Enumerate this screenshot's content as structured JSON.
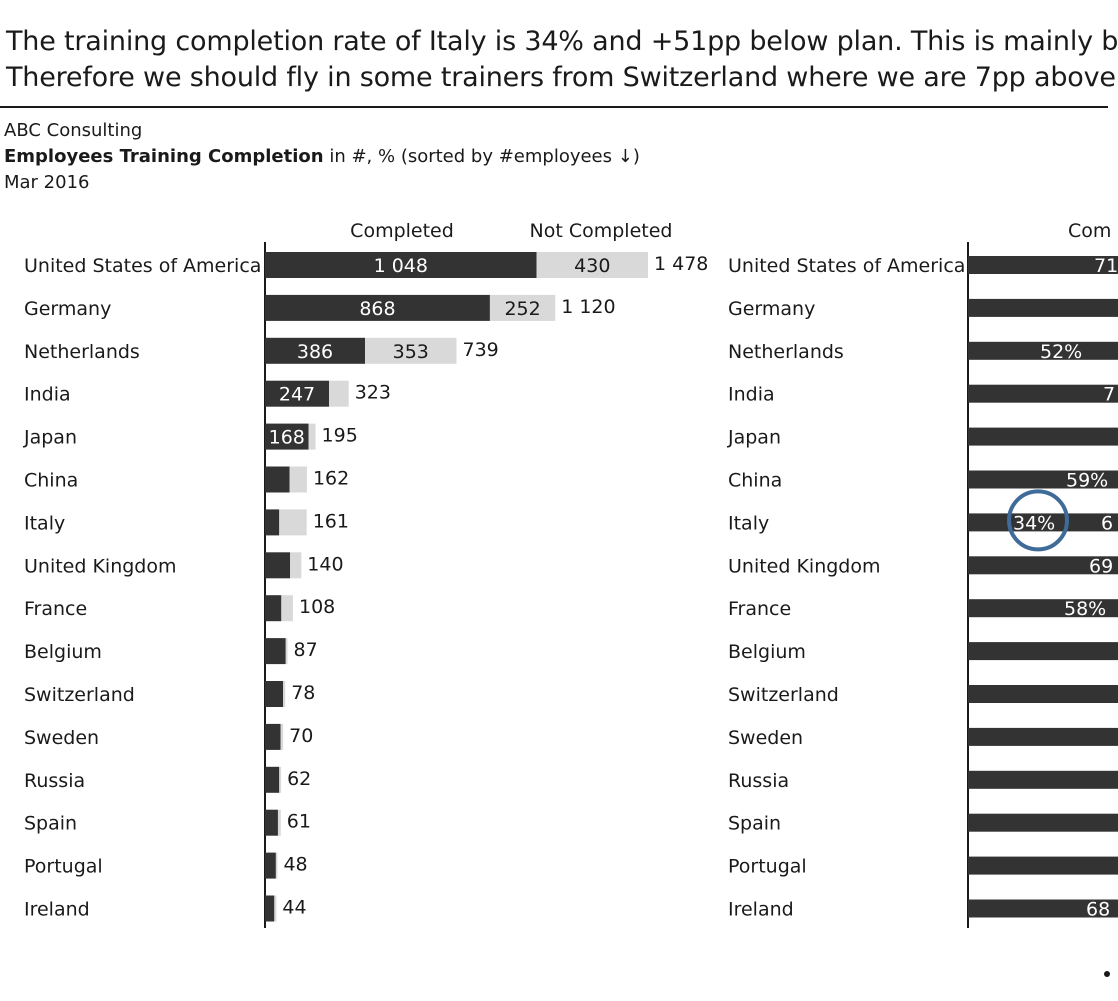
{
  "headline": {
    "line1": "The training completion rate of Italy is 34% and +51pp below plan. This is mainly b",
    "line2": "Therefore we should fly in some trainers from Switzerland where we are 7pp above"
  },
  "meta": {
    "company": "ABC Consulting",
    "title_bold": "Employees Training Completion",
    "title_rest": " in #, % (sorted by #employees ↓)",
    "date": "Mar 2016"
  },
  "colors": {
    "completed": "#333333",
    "not_completed": "#d9d9d9",
    "highlight_ring": "#3f6b99"
  },
  "chart_data": [
    {
      "type": "bar",
      "stacked": true,
      "orientation": "horizontal",
      "legend": [
        "Completed",
        "Not Completed"
      ],
      "categories": [
        "United States of America",
        "Germany",
        "Netherlands",
        "India",
        "Japan",
        "China",
        "Italy",
        "United Kingdom",
        "France",
        "Belgium",
        "Switzerland",
        "Sweden",
        "Russia",
        "Spain",
        "Portugal",
        "Ireland"
      ],
      "series": [
        {
          "name": "Completed",
          "values": [
            1048,
            868,
            386,
            247,
            168,
            95,
            55,
            97,
            63,
            80,
            70,
            60,
            55,
            50,
            42,
            36
          ],
          "labels": [
            "1 048",
            "868",
            "386",
            "247",
            "168",
            "",
            "",
            "",
            "",
            "",
            "",
            "",
            "",
            "",
            "",
            ""
          ]
        },
        {
          "name": "Not Completed",
          "values": [
            430,
            252,
            353,
            76,
            27,
            67,
            106,
            43,
            45,
            7,
            8,
            10,
            7,
            11,
            6,
            8
          ],
          "labels": [
            "430",
            "252",
            "353",
            "",
            "",
            "",
            "",
            "",
            "",
            "",
            "",
            "",
            "",
            "",
            "",
            ""
          ]
        }
      ],
      "totals": [
        1478,
        1120,
        739,
        323,
        195,
        162,
        161,
        140,
        108,
        87,
        78,
        70,
        62,
        61,
        48,
        44
      ],
      "total_labels": [
        "1 478",
        "1 120",
        "739",
        "323",
        "195",
        "162",
        "161",
        "140",
        "108",
        "87",
        "78",
        "70",
        "62",
        "61",
        "48",
        "44"
      ]
    },
    {
      "type": "bar",
      "orientation": "horizontal",
      "header": "Com",
      "categories": [
        "United States of America",
        "Germany",
        "Netherlands",
        "India",
        "Japan",
        "China",
        "Italy",
        "United Kingdom",
        "France",
        "Belgium",
        "Switzerland",
        "Sweden",
        "Russia",
        "Spain",
        "Portugal",
        "Ireland"
      ],
      "value_labels": [
        "71",
        "",
        "52%",
        "7",
        "",
        "59%",
        "34%",
        "69",
        "58%",
        "",
        "",
        "",
        "",
        "",
        "",
        "68"
      ],
      "values_percent": [
        71,
        null,
        52,
        null,
        null,
        59,
        34,
        69,
        58,
        null,
        null,
        null,
        null,
        null,
        null,
        68
      ],
      "extra_labels": {
        "Italy": "6"
      },
      "highlight": "Italy"
    }
  ]
}
